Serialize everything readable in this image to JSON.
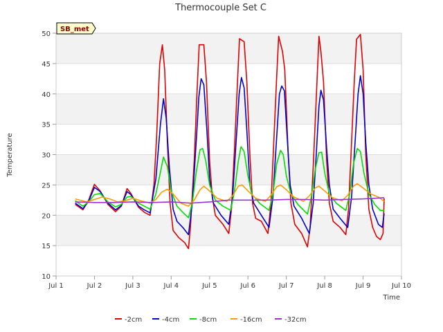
{
  "chart_data": {
    "type": "line",
    "title": "Thermocouple Set C",
    "xlabel": "Time",
    "ylabel": "Temperature",
    "badge": "SB_met",
    "ylim": [
      10,
      50
    ],
    "yticks": [
      10,
      15,
      20,
      25,
      30,
      35,
      40,
      45,
      50
    ],
    "xlim": [
      1.0,
      10.0
    ],
    "xticks": [
      {
        "value": 1,
        "label": "Jul 1"
      },
      {
        "value": 2,
        "label": "Jul 2"
      },
      {
        "value": 3,
        "label": "Jul 3"
      },
      {
        "value": 4,
        "label": "Jul 4"
      },
      {
        "value": 5,
        "label": "Jul 5"
      },
      {
        "value": 6,
        "label": "Jul 6"
      },
      {
        "value": 7,
        "label": "Jul 7"
      },
      {
        "value": 8,
        "label": "Jul 8"
      },
      {
        "value": 9,
        "label": "Jul 9"
      },
      {
        "value": 10,
        "label": "Jul 10"
      }
    ],
    "grid": true,
    "background_bands": true,
    "legend_position": "bottom",
    "series": [
      {
        "name": "-2cm",
        "color": "#dd0000",
        "points": [
          [
            1.5,
            21.8
          ],
          [
            1.7,
            20.9
          ],
          [
            1.85,
            22.5
          ],
          [
            2.0,
            25.1
          ],
          [
            2.15,
            24.0
          ],
          [
            2.35,
            21.8
          ],
          [
            2.55,
            20.6
          ],
          [
            2.7,
            21.5
          ],
          [
            2.85,
            24.4
          ],
          [
            2.95,
            23.6
          ],
          [
            3.15,
            21.3
          ],
          [
            3.3,
            20.5
          ],
          [
            3.45,
            20.0
          ],
          [
            3.55,
            25.0
          ],
          [
            3.62,
            33.0
          ],
          [
            3.7,
            45.0
          ],
          [
            3.77,
            48.1
          ],
          [
            3.83,
            44.0
          ],
          [
            3.9,
            32.0
          ],
          [
            3.97,
            22.0
          ],
          [
            4.05,
            17.5
          ],
          [
            4.2,
            16.3
          ],
          [
            4.35,
            15.5
          ],
          [
            4.45,
            14.5
          ],
          [
            4.5,
            18.0
          ],
          [
            4.6,
            29.0
          ],
          [
            4.67,
            40.0
          ],
          [
            4.73,
            48.1
          ],
          [
            4.85,
            48.1
          ],
          [
            4.92,
            42.0
          ],
          [
            5.0,
            29.0
          ],
          [
            5.07,
            23.0
          ],
          [
            5.15,
            20.0
          ],
          [
            5.35,
            18.5
          ],
          [
            5.5,
            17.0
          ],
          [
            5.57,
            21.0
          ],
          [
            5.65,
            31.0
          ],
          [
            5.72,
            41.0
          ],
          [
            5.78,
            49.1
          ],
          [
            5.9,
            48.6
          ],
          [
            5.97,
            42.0
          ],
          [
            6.05,
            30.0
          ],
          [
            6.12,
            22.0
          ],
          [
            6.2,
            19.5
          ],
          [
            6.35,
            19.0
          ],
          [
            6.52,
            17.0
          ],
          [
            6.6,
            22.0
          ],
          [
            6.68,
            33.0
          ],
          [
            6.75,
            43.0
          ],
          [
            6.8,
            49.5
          ],
          [
            6.9,
            47.0
          ],
          [
            6.96,
            44.0
          ],
          [
            7.05,
            30.0
          ],
          [
            7.12,
            22.0
          ],
          [
            7.22,
            18.5
          ],
          [
            7.4,
            17.0
          ],
          [
            7.55,
            14.8
          ],
          [
            7.62,
            18.0
          ],
          [
            7.7,
            28.0
          ],
          [
            7.77,
            38.0
          ],
          [
            7.85,
            49.5
          ],
          [
            7.9,
            47.0
          ],
          [
            7.97,
            42.0
          ],
          [
            8.05,
            29.0
          ],
          [
            8.12,
            22.0
          ],
          [
            8.22,
            19.0
          ],
          [
            8.4,
            18.0
          ],
          [
            8.55,
            16.8
          ],
          [
            8.62,
            21.0
          ],
          [
            8.7,
            32.0
          ],
          [
            8.77,
            42.0
          ],
          [
            8.83,
            49.0
          ],
          [
            8.93,
            49.8
          ],
          [
            9.0,
            44.0
          ],
          [
            9.07,
            30.0
          ],
          [
            9.15,
            21.0
          ],
          [
            9.25,
            18.0
          ],
          [
            9.35,
            16.5
          ],
          [
            9.45,
            16.0
          ],
          [
            9.52,
            17.0
          ],
          [
            9.55,
            22.8
          ]
        ]
      },
      {
        "name": "-4cm",
        "color": "#0000cc",
        "points": [
          [
            1.5,
            22.0
          ],
          [
            1.7,
            21.1
          ],
          [
            1.85,
            22.3
          ],
          [
            2.0,
            24.6
          ],
          [
            2.15,
            23.9
          ],
          [
            2.35,
            22.0
          ],
          [
            2.55,
            20.9
          ],
          [
            2.7,
            21.6
          ],
          [
            2.85,
            23.9
          ],
          [
            2.95,
            23.4
          ],
          [
            3.15,
            21.5
          ],
          [
            3.3,
            20.9
          ],
          [
            3.45,
            20.4
          ],
          [
            3.6,
            26.0
          ],
          [
            3.72,
            35.0
          ],
          [
            3.8,
            39.2
          ],
          [
            3.87,
            36.0
          ],
          [
            3.95,
            28.0
          ],
          [
            4.05,
            21.0
          ],
          [
            4.15,
            19.0
          ],
          [
            4.3,
            18.0
          ],
          [
            4.45,
            16.8
          ],
          [
            4.55,
            22.0
          ],
          [
            4.65,
            32.0
          ],
          [
            4.72,
            39.5
          ],
          [
            4.78,
            42.5
          ],
          [
            4.85,
            41.5
          ],
          [
            4.93,
            34.0
          ],
          [
            5.0,
            26.0
          ],
          [
            5.1,
            22.0
          ],
          [
            5.3,
            20.0
          ],
          [
            5.5,
            18.5
          ],
          [
            5.6,
            23.0
          ],
          [
            5.7,
            33.0
          ],
          [
            5.77,
            40.0
          ],
          [
            5.83,
            42.7
          ],
          [
            5.9,
            41.0
          ],
          [
            5.97,
            34.0
          ],
          [
            6.05,
            25.0
          ],
          [
            6.15,
            22.0
          ],
          [
            6.35,
            20.0
          ],
          [
            6.55,
            18.0
          ],
          [
            6.65,
            23.0
          ],
          [
            6.75,
            33.0
          ],
          [
            6.82,
            40.0
          ],
          [
            6.88,
            41.3
          ],
          [
            6.95,
            40.5
          ],
          [
            7.02,
            33.0
          ],
          [
            7.1,
            25.0
          ],
          [
            7.2,
            21.5
          ],
          [
            7.4,
            19.5
          ],
          [
            7.6,
            17.0
          ],
          [
            7.7,
            22.0
          ],
          [
            7.78,
            30.0
          ],
          [
            7.85,
            38.0
          ],
          [
            7.9,
            40.6
          ],
          [
            7.97,
            39.0
          ],
          [
            8.05,
            31.0
          ],
          [
            8.12,
            25.0
          ],
          [
            8.22,
            21.0
          ],
          [
            8.4,
            19.5
          ],
          [
            8.6,
            18.0
          ],
          [
            8.7,
            23.0
          ],
          [
            8.8,
            33.0
          ],
          [
            8.87,
            40.0
          ],
          [
            8.93,
            43.0
          ],
          [
            9.0,
            40.0
          ],
          [
            9.07,
            32.0
          ],
          [
            9.15,
            25.0
          ],
          [
            9.25,
            21.0
          ],
          [
            9.4,
            18.5
          ],
          [
            9.5,
            18.0
          ],
          [
            9.55,
            20.3
          ]
        ]
      },
      {
        "name": "-8cm",
        "color": "#00dd00",
        "points": [
          [
            1.5,
            22.4
          ],
          [
            1.7,
            21.5
          ],
          [
            1.85,
            22.2
          ],
          [
            2.0,
            23.4
          ],
          [
            2.15,
            23.6
          ],
          [
            2.35,
            22.2
          ],
          [
            2.55,
            21.4
          ],
          [
            2.7,
            21.8
          ],
          [
            2.85,
            23.0
          ],
          [
            2.95,
            23.1
          ],
          [
            3.15,
            22.0
          ],
          [
            3.3,
            21.5
          ],
          [
            3.45,
            21.0
          ],
          [
            3.6,
            23.5
          ],
          [
            3.7,
            26.5
          ],
          [
            3.8,
            29.6
          ],
          [
            3.9,
            28.0
          ],
          [
            4.0,
            24.0
          ],
          [
            4.15,
            21.5
          ],
          [
            4.3,
            20.5
          ],
          [
            4.45,
            19.6
          ],
          [
            4.55,
            22.0
          ],
          [
            4.65,
            27.0
          ],
          [
            4.75,
            30.8
          ],
          [
            4.82,
            31.0
          ],
          [
            4.9,
            29.0
          ],
          [
            5.0,
            25.0
          ],
          [
            5.15,
            22.5
          ],
          [
            5.35,
            21.5
          ],
          [
            5.55,
            20.8
          ],
          [
            5.65,
            24.0
          ],
          [
            5.75,
            29.0
          ],
          [
            5.82,
            31.3
          ],
          [
            5.9,
            30.5
          ],
          [
            6.0,
            26.5
          ],
          [
            6.1,
            23.5
          ],
          [
            6.3,
            22.0
          ],
          [
            6.55,
            20.8
          ],
          [
            6.65,
            23.5
          ],
          [
            6.75,
            28.5
          ],
          [
            6.85,
            30.7
          ],
          [
            6.92,
            30.0
          ],
          [
            7.0,
            26.5
          ],
          [
            7.12,
            23.5
          ],
          [
            7.3,
            21.8
          ],
          [
            7.55,
            20.2
          ],
          [
            7.65,
            23.0
          ],
          [
            7.75,
            27.5
          ],
          [
            7.85,
            30.3
          ],
          [
            7.92,
            30.4
          ],
          [
            8.0,
            27.0
          ],
          [
            8.12,
            23.5
          ],
          [
            8.3,
            22.0
          ],
          [
            8.55,
            20.8
          ],
          [
            8.65,
            23.5
          ],
          [
            8.75,
            28.5
          ],
          [
            8.85,
            31.0
          ],
          [
            8.93,
            30.5
          ],
          [
            9.02,
            27.0
          ],
          [
            9.15,
            23.5
          ],
          [
            9.3,
            21.8
          ],
          [
            9.45,
            20.8
          ],
          [
            9.55,
            20.8
          ]
        ]
      },
      {
        "name": "-16cm",
        "color": "#ff9900",
        "points": [
          [
            1.5,
            22.7
          ],
          [
            1.8,
            22.2
          ],
          [
            2.0,
            22.6
          ],
          [
            2.2,
            23.0
          ],
          [
            2.4,
            22.7
          ],
          [
            2.6,
            22.2
          ],
          [
            2.8,
            22.4
          ],
          [
            3.0,
            22.8
          ],
          [
            3.2,
            22.4
          ],
          [
            3.45,
            22.0
          ],
          [
            3.6,
            22.6
          ],
          [
            3.75,
            23.8
          ],
          [
            3.9,
            24.3
          ],
          [
            4.05,
            23.5
          ],
          [
            4.25,
            22.0
          ],
          [
            4.45,
            21.5
          ],
          [
            4.6,
            22.5
          ],
          [
            4.75,
            24.2
          ],
          [
            4.85,
            24.8
          ],
          [
            5.0,
            24.0
          ],
          [
            5.2,
            22.8
          ],
          [
            5.45,
            22.3
          ],
          [
            5.6,
            23.2
          ],
          [
            5.75,
            24.8
          ],
          [
            5.85,
            25.0
          ],
          [
            6.0,
            24.0
          ],
          [
            6.2,
            22.8
          ],
          [
            6.45,
            22.3
          ],
          [
            6.6,
            23.3
          ],
          [
            6.75,
            24.7
          ],
          [
            6.85,
            25.0
          ],
          [
            7.0,
            24.2
          ],
          [
            7.2,
            23.0
          ],
          [
            7.45,
            22.3
          ],
          [
            7.6,
            23.2
          ],
          [
            7.75,
            24.5
          ],
          [
            7.85,
            24.8
          ],
          [
            8.0,
            24.0
          ],
          [
            8.2,
            22.9
          ],
          [
            8.45,
            22.4
          ],
          [
            8.6,
            23.3
          ],
          [
            8.75,
            24.8
          ],
          [
            8.85,
            25.2
          ],
          [
            9.0,
            24.5
          ],
          [
            9.2,
            23.5
          ],
          [
            9.4,
            23.0
          ],
          [
            9.55,
            22.3
          ]
        ]
      },
      {
        "name": "-32cm",
        "color": "#9933cc",
        "points": [
          [
            1.5,
            22.2
          ],
          [
            2.0,
            22.1
          ],
          [
            2.5,
            22.1
          ],
          [
            3.0,
            22.2
          ],
          [
            3.5,
            22.1
          ],
          [
            4.0,
            22.2
          ],
          [
            4.5,
            22.0
          ],
          [
            5.0,
            22.2
          ],
          [
            5.5,
            22.5
          ],
          [
            6.0,
            22.5
          ],
          [
            6.5,
            22.5
          ],
          [
            7.0,
            22.6
          ],
          [
            7.5,
            22.6
          ],
          [
            8.0,
            22.5
          ],
          [
            8.5,
            22.6
          ],
          [
            9.0,
            22.7
          ],
          [
            9.3,
            22.8
          ],
          [
            9.55,
            22.9
          ]
        ]
      }
    ]
  }
}
